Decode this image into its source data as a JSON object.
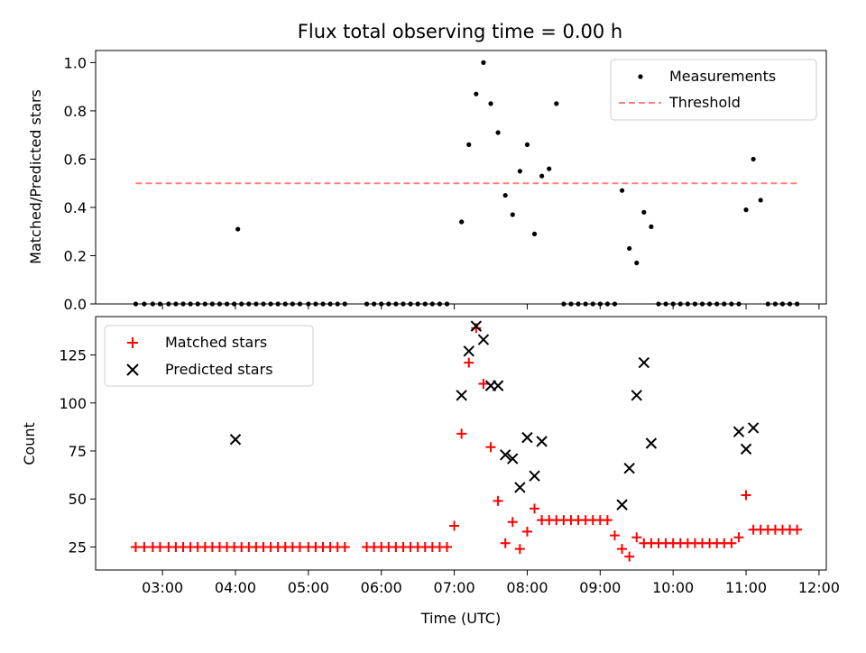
{
  "chart_data": [
    {
      "type": "scatter",
      "title": "Flux total observing time = 0.00 h",
      "ylabel": "Matched/Predicted stars",
      "xlabel": "",
      "xlim": [
        "02:05",
        "12:06"
      ],
      "ylim": [
        0,
        1.05
      ],
      "yticks": [
        "0.0",
        "0.2",
        "0.4",
        "0.6",
        "0.8",
        "1.0"
      ],
      "legend_position": "top-right",
      "series": [
        {
          "name": "Measurements",
          "marker": "dot",
          "color": "#000000",
          "x": [
            "02:38",
            "02:45",
            "02:52",
            "02:58",
            "03:05",
            "03:11",
            "03:17",
            "03:23",
            "03:29",
            "03:35",
            "03:41",
            "03:47",
            "03:53",
            "03:59",
            "04:02",
            "04:05",
            "04:11",
            "04:17",
            "04:23",
            "04:29",
            "04:35",
            "04:41",
            "04:47",
            "04:53",
            "05:00",
            "05:06",
            "05:12",
            "05:18",
            "05:24",
            "05:30",
            "05:48",
            "05:54",
            "06:00",
            "06:06",
            "06:12",
            "06:18",
            "06:24",
            "06:30",
            "06:36",
            "06:42",
            "06:48",
            "06:54",
            "07:06",
            "07:12",
            "07:18",
            "07:24",
            "07:30",
            "07:36",
            "07:42",
            "07:48",
            "07:54",
            "08:00",
            "08:06",
            "08:12",
            "08:18",
            "08:24",
            "08:30",
            "08:36",
            "08:42",
            "08:48",
            "08:54",
            "09:00",
            "09:06",
            "09:12",
            "09:18",
            "09:24",
            "09:30",
            "09:36",
            "09:42",
            "09:48",
            "09:54",
            "10:00",
            "10:06",
            "10:12",
            "10:18",
            "10:24",
            "10:30",
            "10:36",
            "10:42",
            "10:48",
            "10:54",
            "11:00",
            "11:06",
            "11:12",
            "11:18",
            "11:24",
            "11:30",
            "11:36",
            "11:42"
          ],
          "y": [
            0,
            0,
            0,
            0,
            0,
            0,
            0,
            0,
            0,
            0,
            0,
            0,
            0,
            0,
            0.31,
            0,
            0,
            0,
            0,
            0,
            0,
            0,
            0,
            0,
            0,
            0,
            0,
            0,
            0,
            0,
            0,
            0,
            0,
            0,
            0,
            0,
            0,
            0,
            0,
            0,
            0,
            0,
            0.34,
            0.66,
            0.87,
            1.0,
            0.83,
            0.71,
            0.45,
            0.37,
            0.55,
            0.66,
            0.29,
            0.53,
            0.56,
            0.83,
            0,
            0,
            0,
            0,
            0,
            0,
            0,
            0,
            0.47,
            0.23,
            0.17,
            0.38,
            0.32,
            0,
            0,
            0,
            0,
            0,
            0,
            0,
            0,
            0,
            0,
            0,
            0,
            0.39,
            0.6,
            0.43,
            0,
            0,
            0,
            0,
            0
          ]
        },
        {
          "name": "Threshold",
          "line": "dashed",
          "color": "#ff7f7f",
          "x": [
            "02:38",
            "11:42"
          ],
          "y": [
            0.5,
            0.5
          ]
        }
      ]
    },
    {
      "type": "scatter",
      "title": "",
      "ylabel": "Count",
      "xlabel": "Time (UTC)",
      "xlim": [
        "02:05",
        "12:06"
      ],
      "ylim": [
        13,
        145
      ],
      "yticks": [
        "25",
        "50",
        "75",
        "100",
        "125"
      ],
      "xticks": [
        "03:00",
        "04:00",
        "05:00",
        "06:00",
        "07:00",
        "08:00",
        "09:00",
        "10:00",
        "11:00",
        "12:00"
      ],
      "legend_position": "top-left",
      "series": [
        {
          "name": "Matched stars",
          "marker": "plus",
          "color": "#ff0000",
          "x": [
            "02:38",
            "02:45",
            "02:52",
            "02:58",
            "03:05",
            "03:11",
            "03:17",
            "03:23",
            "03:29",
            "03:35",
            "03:41",
            "03:47",
            "03:53",
            "03:59",
            "04:05",
            "04:11",
            "04:17",
            "04:23",
            "04:29",
            "04:35",
            "04:41",
            "04:47",
            "04:53",
            "05:00",
            "05:06",
            "05:12",
            "05:18",
            "05:24",
            "05:30",
            "05:48",
            "05:54",
            "06:00",
            "06:06",
            "06:12",
            "06:18",
            "06:24",
            "06:30",
            "06:36",
            "06:42",
            "06:48",
            "06:54",
            "07:00",
            "07:06",
            "07:12",
            "07:18",
            "07:24",
            "07:30",
            "07:36",
            "07:42",
            "07:48",
            "07:54",
            "08:00",
            "08:06",
            "08:12",
            "08:18",
            "08:24",
            "08:30",
            "08:36",
            "08:42",
            "08:48",
            "08:54",
            "09:00",
            "09:06",
            "09:12",
            "09:18",
            "09:24",
            "09:30",
            "09:36",
            "09:42",
            "09:48",
            "09:54",
            "10:00",
            "10:06",
            "10:12",
            "10:18",
            "10:24",
            "10:30",
            "10:36",
            "10:42",
            "10:48",
            "10:54",
            "11:00",
            "11:06",
            "11:12",
            "11:18",
            "11:24",
            "11:30",
            "11:36",
            "11:42"
          ],
          "y": [
            25,
            25,
            25,
            25,
            25,
            25,
            25,
            25,
            25,
            25,
            25,
            25,
            25,
            25,
            25,
            25,
            25,
            25,
            25,
            25,
            25,
            25,
            25,
            25,
            25,
            25,
            25,
            25,
            25,
            25,
            25,
            25,
            25,
            25,
            25,
            25,
            25,
            25,
            25,
            25,
            25,
            36,
            84,
            121,
            139,
            110,
            77,
            49,
            27,
            38,
            24,
            33,
            45,
            39,
            39,
            39,
            39,
            39,
            39,
            39,
            39,
            39,
            39,
            31,
            24,
            20,
            30,
            27,
            27,
            27,
            27,
            27,
            27,
            27,
            27,
            27,
            27,
            27,
            27,
            27,
            30,
            52,
            34,
            34,
            34,
            34,
            34,
            34,
            34
          ]
        },
        {
          "name": "Predicted stars",
          "marker": "x",
          "color": "#000000",
          "x": [
            "04:00",
            "07:06",
            "07:12",
            "07:18",
            "07:24",
            "07:30",
            "07:36",
            "07:42",
            "07:48",
            "07:54",
            "08:00",
            "08:06",
            "08:12",
            "09:18",
            "09:24",
            "09:30",
            "09:36",
            "09:42",
            "10:54",
            "11:00",
            "11:06"
          ],
          "y": [
            81,
            104,
            127,
            140,
            133,
            109,
            109,
            73,
            71,
            56,
            82,
            62,
            80,
            47,
            66,
            104,
            121,
            79,
            85,
            76,
            87
          ]
        }
      ]
    }
  ]
}
